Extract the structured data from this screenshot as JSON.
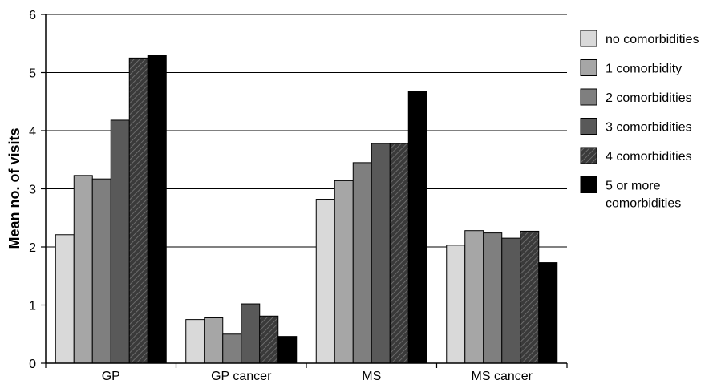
{
  "chart_data": {
    "type": "bar",
    "title": "",
    "xlabel": "",
    "ylabel": "Mean no. of visits",
    "ylim": [
      0,
      6
    ],
    "yticks": [
      "0",
      "1",
      "2",
      "3",
      "4",
      "5",
      "6"
    ],
    "grid": true,
    "legend_position": "right",
    "categories": [
      "GP",
      "GP cancer",
      "MS",
      "MS cancer"
    ],
    "series": [
      {
        "name": "no comorbidities",
        "color": "#d9d9d9",
        "pattern": "solid",
        "values": [
          2.21,
          0.75,
          2.82,
          2.03
        ]
      },
      {
        "name": "1 comorbidity",
        "color": "#a6a6a6",
        "pattern": "solid",
        "values": [
          3.23,
          0.78,
          3.14,
          2.28
        ]
      },
      {
        "name": "2 comorbidities",
        "color": "#7f7f7f",
        "pattern": "solid",
        "values": [
          3.17,
          0.5,
          3.45,
          2.24
        ]
      },
      {
        "name": "3 comorbidities",
        "color": "#595959",
        "pattern": "solid",
        "values": [
          4.18,
          1.02,
          3.78,
          2.15
        ]
      },
      {
        "name": "4 comorbidities",
        "color": "#404040",
        "pattern": "hatched",
        "values": [
          5.25,
          0.81,
          3.78,
          2.27
        ]
      },
      {
        "name": "5 or more comorbidities",
        "label_lines": [
          "5 or more",
          "comorbidities"
        ],
        "color": "#000000",
        "pattern": "solid",
        "values": [
          5.3,
          0.46,
          4.67,
          1.73
        ]
      }
    ]
  }
}
